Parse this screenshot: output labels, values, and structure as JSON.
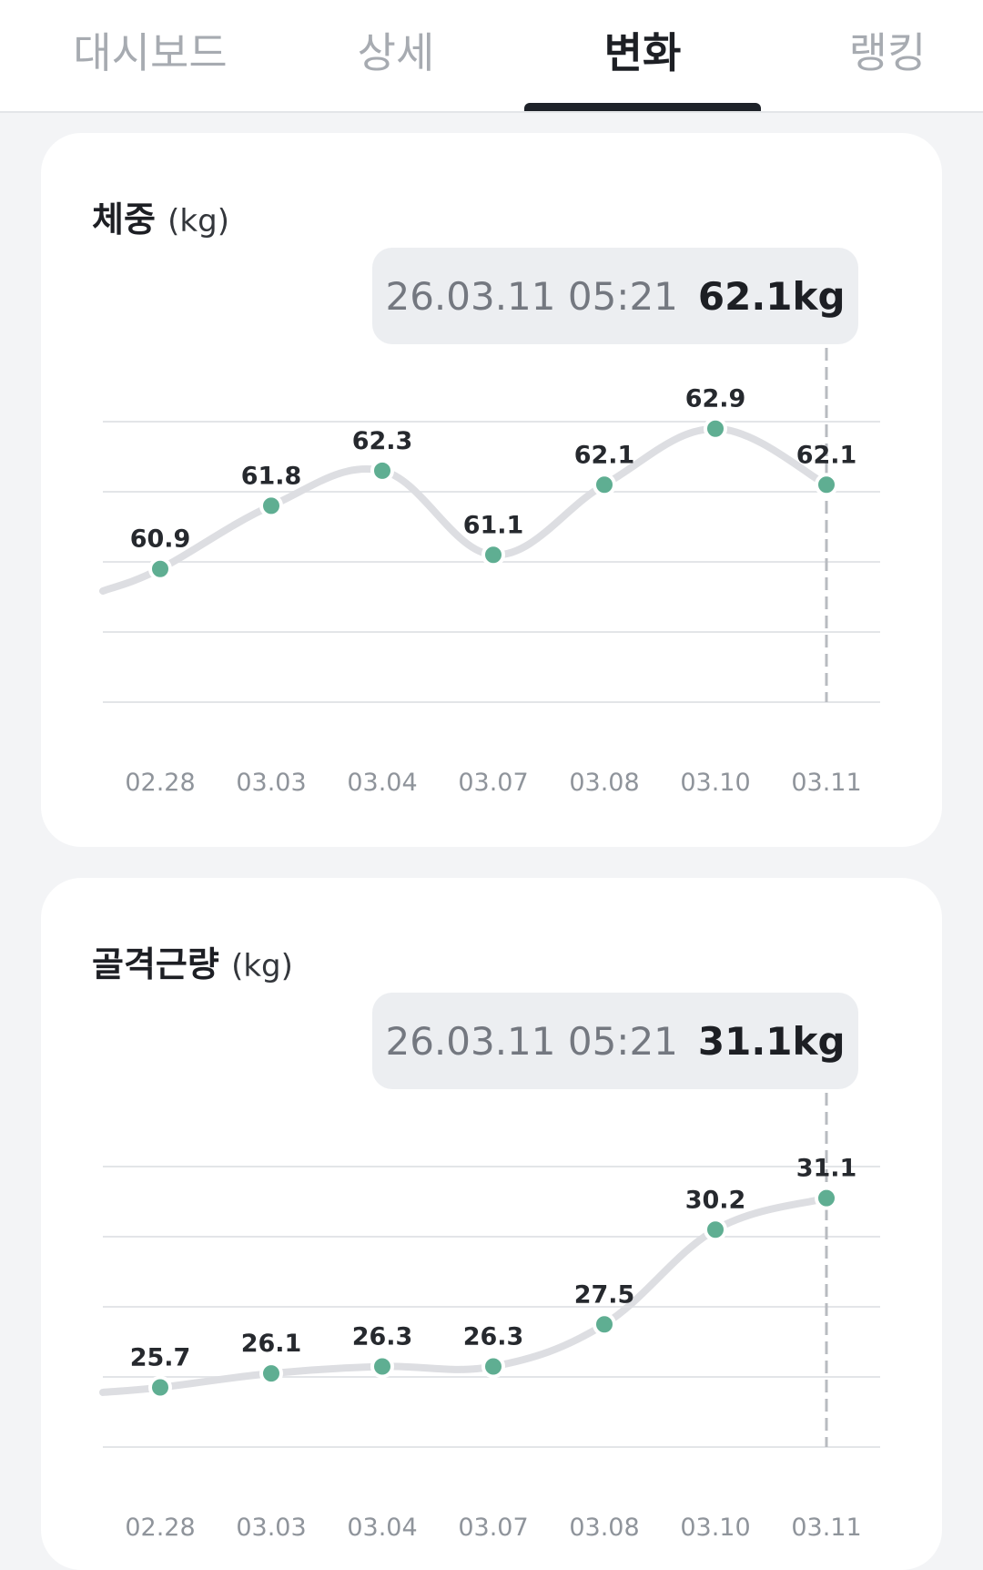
{
  "tabs": [
    {
      "label": "대시보드",
      "active": false
    },
    {
      "label": "상세",
      "active": false
    },
    {
      "label": "변화",
      "active": true
    },
    {
      "label": "랭킹",
      "active": false
    }
  ],
  "cards": [
    {
      "title": "체중",
      "unit": "(kg)",
      "tooltip": {
        "datetime": "26.03.11 05:21",
        "value": "62.1kg"
      }
    },
    {
      "title": "골격근량",
      "unit": "(kg)",
      "tooltip": {
        "datetime": "26.03.11 05:21",
        "value": "31.1kg"
      }
    }
  ],
  "colors": {
    "point": "#5fae92",
    "line": "#dddee2",
    "grid": "#e3e5e8",
    "cursor": "#b8bbc0"
  },
  "chart_data": [
    {
      "type": "line",
      "title": "체중 (kg)",
      "categories": [
        "02.28",
        "03.03",
        "03.04",
        "03.07",
        "03.08",
        "03.10",
        "03.11"
      ],
      "values": [
        60.9,
        61.8,
        62.3,
        61.1,
        62.1,
        62.9,
        62.1
      ],
      "labels": [
        "60.9",
        "61.8",
        "62.3",
        "61.1",
        "62.1",
        "62.9",
        "62.1"
      ],
      "ylim": [
        59.0,
        63.0
      ],
      "grid": true,
      "selected_index": 6
    },
    {
      "type": "line",
      "title": "골격근량 (kg)",
      "categories": [
        "02.28",
        "03.03",
        "03.04",
        "03.07",
        "03.08",
        "03.10",
        "03.11"
      ],
      "values": [
        25.7,
        26.1,
        26.3,
        26.3,
        27.5,
        30.2,
        31.1
      ],
      "labels": [
        "25.7",
        "26.1",
        "26.3",
        "26.3",
        "27.5",
        "30.2",
        "31.1"
      ],
      "ylim": [
        24.0,
        32.0
      ],
      "grid": true,
      "selected_index": 6
    }
  ]
}
